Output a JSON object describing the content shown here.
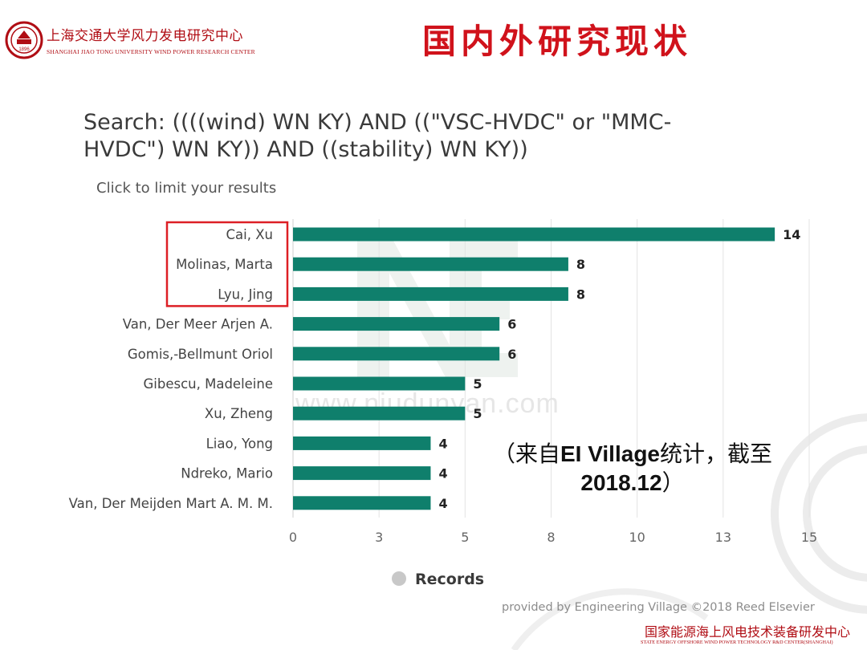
{
  "header": {
    "university_cn": "上海交通大学风力发电研究中心",
    "university_en": "SHANGHAI JIAO TONG UNIVERSITY WIND POWER RESEARCH CENTER",
    "seal_year": "1896",
    "title": "国内外研究现状"
  },
  "search": {
    "line1": "Search: ((((wind) WN KY) AND ((\"VSC-HVDC\" or \"MMC-",
    "line2": "HVDC\") WN KY)) AND ((stability) WN KY))",
    "hint": "Click to limit your results"
  },
  "chart_data": {
    "type": "bar",
    "orientation": "horizontal",
    "categories": [
      "Cai, Xu",
      "Molinas, Marta",
      "Lyu, Jing",
      "Van, Der Meer Arjen A.",
      "Gomis,-Bellmunt Oriol",
      "Gibescu, Madeleine",
      "Xu, Zheng",
      "Liao, Yong",
      "Ndreko, Mario",
      "Van, Der Meijden Mart A. M. M."
    ],
    "series": [
      {
        "name": "Records",
        "values": [
          14,
          8,
          8,
          6,
          6,
          5,
          5,
          4,
          4,
          4
        ]
      }
    ],
    "value_labels": [
      "14",
      "8",
      "8",
      "6",
      "6",
      "5",
      "5",
      "4",
      "4",
      "4"
    ],
    "xticks": [
      "0",
      "3",
      "5",
      "8",
      "10",
      "13",
      "15"
    ],
    "xtick_values": [
      0,
      2.5,
      5,
      7.5,
      10,
      12.5,
      15
    ],
    "xlim": [
      0,
      15
    ],
    "legend": "bottom",
    "grid": "vertical",
    "highlighted_categories": [
      0,
      1,
      2
    ]
  },
  "colors": {
    "bar": "#0f7f6c",
    "highlight_box": "#dd1f25",
    "accent_red": "#b00d14"
  },
  "note": {
    "prefix": "（来自",
    "bold1": "EI Village",
    "mid": "统计，截至",
    "bold2": "2018.12",
    "suffix": "）"
  },
  "footer": {
    "provided_by": "provided by Engineering Village ©2018 Reed Elsevier",
    "center_cn": "国家能源海上风电技术装备研发中心",
    "center_en": "STATE ENERGY OFFSHORE WIND POWER TECHNOLOGY R&D CENTER(SHANGHAI)"
  },
  "watermark": "www.niudunyan.com"
}
